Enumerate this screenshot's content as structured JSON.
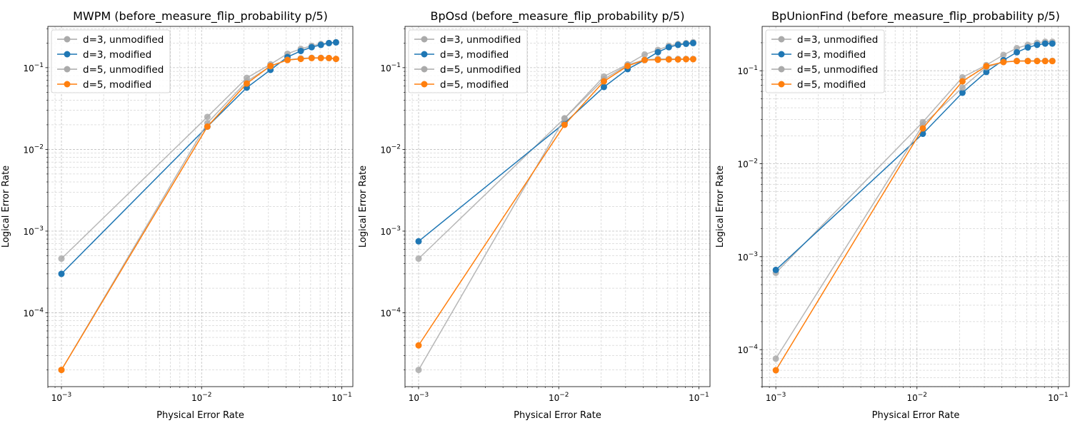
{
  "chart_data": [
    {
      "type": "line",
      "title": "MWPM (before_measure_flip_probability p/5)",
      "xlabel": "Physical Error Rate",
      "ylabel": "Logical Error Rate",
      "xscale": "log",
      "yscale": "log",
      "xlim": [
        0.0008,
        0.12
      ],
      "ylim": [
        1.25e-05,
        0.32
      ],
      "xticks": [
        0.001,
        0.01,
        0.1
      ],
      "xtick_labels": [
        [
          "10",
          "−3"
        ],
        [
          "10",
          "−2"
        ],
        [
          "10",
          "−1"
        ]
      ],
      "yticks": [
        0.0001,
        0.001,
        0.01,
        0.1
      ],
      "ytick_labels": [
        [
          "10",
          "−4"
        ],
        [
          "10",
          "−3"
        ],
        [
          "10",
          "−2"
        ],
        [
          "10",
          "−1"
        ]
      ],
      "grid": true,
      "legend_position": "upper-left",
      "x": [
        0.001,
        0.011,
        0.021,
        0.031,
        0.041,
        0.051,
        0.061,
        0.071,
        0.081,
        0.091
      ],
      "series": [
        {
          "name": "d=3, unmodified",
          "color": "#aaaaaa",
          "values": [
            0.00046,
            0.025,
            0.075,
            0.11,
            0.148,
            0.17,
            0.185,
            0.195,
            0.2,
            0.205
          ]
        },
        {
          "name": "d=3, modified",
          "color": "#1f77b4",
          "values": [
            0.0003,
            0.019,
            0.057,
            0.094,
            0.135,
            0.16,
            0.178,
            0.19,
            0.2,
            0.204
          ]
        },
        {
          "name": "d=5, unmodified",
          "color": "#aaaaaa",
          "values": [
            2e-05,
            0.021,
            0.068,
            0.104,
            0.125,
            0.13,
            0.132,
            0.132,
            0.131,
            0.128
          ]
        },
        {
          "name": "d=5, modified",
          "color": "#ff7f0e",
          "values": [
            2e-05,
            0.019,
            0.064,
            0.105,
            0.124,
            0.128,
            0.131,
            0.131,
            0.131,
            0.128
          ]
        }
      ]
    },
    {
      "type": "line",
      "title": "BpOsd (before_measure_flip_probability p/5)",
      "xlabel": "Physical Error Rate",
      "ylabel": "Logical Error Rate",
      "xscale": "log",
      "yscale": "log",
      "xlim": [
        0.0008,
        0.12
      ],
      "ylim": [
        1.25e-05,
        0.32
      ],
      "xticks": [
        0.001,
        0.01,
        0.1
      ],
      "xtick_labels": [
        [
          "10",
          "−3"
        ],
        [
          "10",
          "−2"
        ],
        [
          "10",
          "−1"
        ]
      ],
      "yticks": [
        0.0001,
        0.001,
        0.01,
        0.1
      ],
      "ytick_labels": [
        [
          "10",
          "−4"
        ],
        [
          "10",
          "−3"
        ],
        [
          "10",
          "−2"
        ],
        [
          "10",
          "−1"
        ]
      ],
      "grid": true,
      "legend_position": "upper-left",
      "x": [
        0.001,
        0.011,
        0.021,
        0.031,
        0.041,
        0.051,
        0.061,
        0.071,
        0.081,
        0.091
      ],
      "series": [
        {
          "name": "d=3, unmodified",
          "color": "#aaaaaa",
          "values": [
            0.00046,
            0.024,
            0.078,
            0.11,
            0.145,
            0.165,
            0.185,
            0.195,
            0.2,
            0.205
          ]
        },
        {
          "name": "d=3, modified",
          "color": "#1f77b4",
          "values": [
            0.00075,
            0.021,
            0.058,
            0.096,
            0.124,
            0.155,
            0.178,
            0.19,
            0.196,
            0.2
          ]
        },
        {
          "name": "d=5, unmodified",
          "color": "#aaaaaa",
          "values": [
            2e-05,
            0.024,
            0.072,
            0.108,
            0.125,
            0.128,
            0.128,
            0.128,
            0.128,
            0.128
          ]
        },
        {
          "name": "d=5, modified",
          "color": "#ff7f0e",
          "values": [
            4e-05,
            0.02,
            0.068,
            0.105,
            0.124,
            0.125,
            0.126,
            0.126,
            0.127,
            0.127
          ]
        }
      ]
    },
    {
      "type": "line",
      "title": "BpUnionFind (before_measure_flip_probability p/5)",
      "xlabel": "Physical Error Rate",
      "ylabel": "Logical Error Rate",
      "xscale": "log",
      "yscale": "log",
      "xlim": [
        0.0008,
        0.12
      ],
      "ylim": [
        4e-05,
        0.3
      ],
      "xticks": [
        0.001,
        0.01,
        0.1
      ],
      "xtick_labels": [
        [
          "10",
          "−3"
        ],
        [
          "10",
          "−2"
        ],
        [
          "10",
          "−1"
        ]
      ],
      "yticks": [
        0.0001,
        0.001,
        0.01,
        0.1
      ],
      "ytick_labels": [
        [
          "10",
          "−4"
        ],
        [
          "10",
          "−3"
        ],
        [
          "10",
          "−2"
        ],
        [
          "10",
          "−1"
        ]
      ],
      "grid": true,
      "legend_position": "upper-left",
      "x": [
        0.001,
        0.011,
        0.021,
        0.031,
        0.041,
        0.051,
        0.061,
        0.071,
        0.081,
        0.091
      ],
      "series": [
        {
          "name": "d=3, unmodified",
          "color": "#aaaaaa",
          "values": [
            0.00067,
            0.028,
            0.085,
            0.115,
            0.148,
            0.175,
            0.19,
            0.2,
            0.205,
            0.205
          ]
        },
        {
          "name": "d=3, modified",
          "color": "#1f77b4",
          "values": [
            0.00072,
            0.021,
            0.058,
            0.097,
            0.13,
            0.158,
            0.178,
            0.19,
            0.196,
            0.196
          ]
        },
        {
          "name": "d=5, unmodified",
          "color": "#aaaaaa",
          "values": [
            8e-05,
            0.026,
            0.066,
            0.109,
            0.124,
            0.128,
            0.128,
            0.128,
            0.128,
            0.128
          ]
        },
        {
          "name": "d=5, modified",
          "color": "#ff7f0e",
          "values": [
            6e-05,
            0.024,
            0.077,
            0.112,
            0.124,
            0.127,
            0.127,
            0.127,
            0.127,
            0.127
          ]
        }
      ]
    }
  ]
}
